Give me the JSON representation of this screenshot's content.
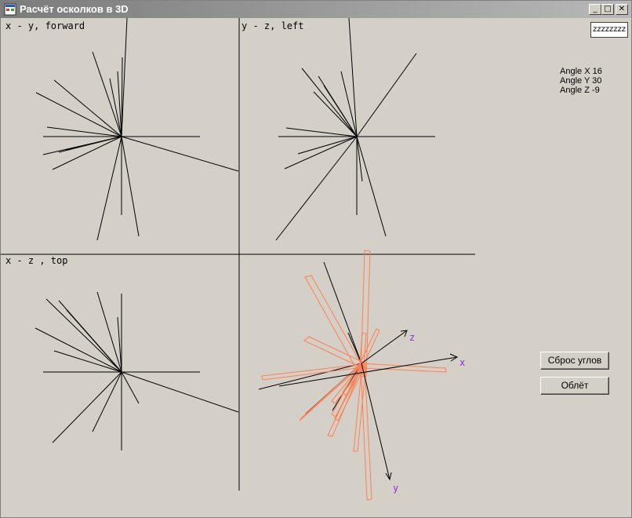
{
  "window": {
    "title": "Расчёт осколков в 3D",
    "buttons": {
      "minimize": "_",
      "maximize": "□",
      "close": "✕"
    }
  },
  "views": {
    "forward": "x - y, forward",
    "left": "y - z, left",
    "top": "x - z , top"
  },
  "axes3d": {
    "x": "x",
    "y": "y",
    "z": "z"
  },
  "input": {
    "value": "zzzzzzzz"
  },
  "angles": {
    "x": "Angle X 16",
    "y": "Angle Y 30",
    "z": "Angle Z -9"
  },
  "buttons": {
    "reset": "Сброс углов",
    "flyby": "Облёт"
  },
  "colors": {
    "background": "#d4d0c8",
    "fragments": "#ff7f50",
    "axis_labels": "#8b2be2",
    "lines": "#000000"
  }
}
